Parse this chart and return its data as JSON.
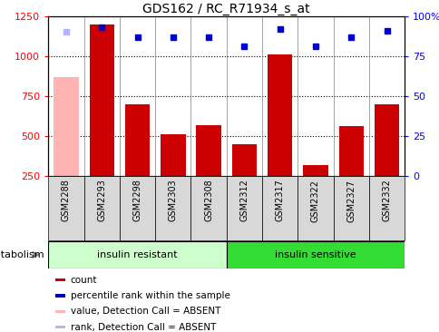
{
  "title": "GDS162 / RC_R71934_s_at",
  "samples": [
    "GSM2288",
    "GSM2293",
    "GSM2298",
    "GSM2303",
    "GSM2308",
    "GSM2312",
    "GSM2317",
    "GSM2322",
    "GSM2327",
    "GSM2332"
  ],
  "bar_values": [
    null,
    1200,
    700,
    510,
    570,
    450,
    1010,
    320,
    565,
    700
  ],
  "absent_bar_value": 870,
  "absent_bar_index": 0,
  "rank_values": [
    1155,
    1185,
    1120,
    1120,
    1120,
    1065,
    1170,
    1065,
    1120,
    1160
  ],
  "absent_rank_index": 0,
  "bar_color": "#cc0000",
  "absent_bar_color": "#ffb3b3",
  "rank_color": "#0000cc",
  "absent_rank_color": "#b3b3ff",
  "ylim_left": [
    250,
    1250
  ],
  "ylim_right": [
    0,
    100
  ],
  "yticks_left": [
    250,
    500,
    750,
    1000,
    1250
  ],
  "yticks_right": [
    0,
    25,
    50,
    75,
    100
  ],
  "group1_label": "insulin resistant",
  "group2_label": "insulin sensitive",
  "group1_indices": [
    0,
    1,
    2,
    3,
    4
  ],
  "group2_indices": [
    5,
    6,
    7,
    8,
    9
  ],
  "group1_color": "#ccffcc",
  "group2_color": "#33dd33",
  "tick_bg_color": "#d8d8d8",
  "legend_items": [
    {
      "label": "count",
      "color": "#cc0000"
    },
    {
      "label": "percentile rank within the sample",
      "color": "#0000cc"
    },
    {
      "label": "value, Detection Call = ABSENT",
      "color": "#ffb3b3"
    },
    {
      "label": "rank, Detection Call = ABSENT",
      "color": "#b3b3ff"
    }
  ],
  "metabolism_label": "metabolism"
}
